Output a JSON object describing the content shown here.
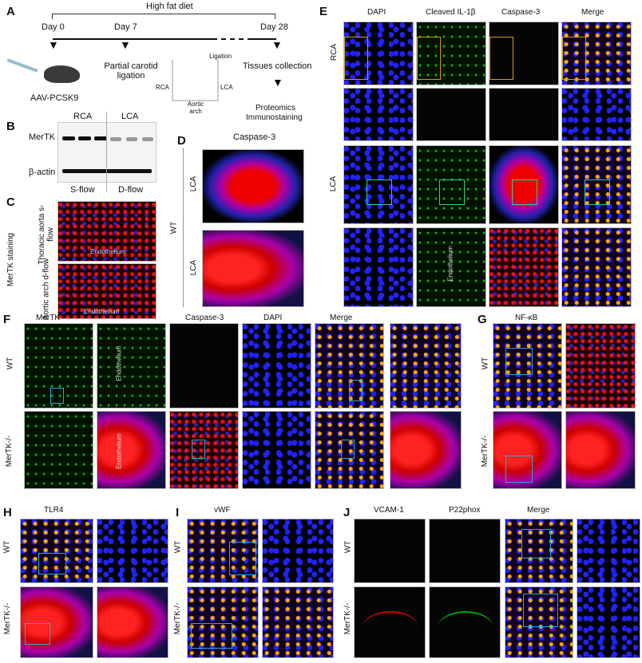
{
  "panels": {
    "A": "A",
    "B": "B",
    "C": "C",
    "D": "D",
    "E": "E",
    "F": "F",
    "G": "G",
    "H": "H",
    "I": "I",
    "J": "J"
  },
  "a": {
    "diet": "High fat diet",
    "day0": "Day 0",
    "day7": "Day 7",
    "day28": "Day 28",
    "aav": "AAV-PCSK9",
    "ligation_step": "Partial carotid ligation",
    "ligation": "Ligation",
    "rca": "RCA",
    "lca": "LCA",
    "arch": "Aortic arch",
    "collect": "Tissues collection",
    "analysis1": "Proteomics",
    "analysis2": "Immunostaining"
  },
  "b": {
    "rca": "RCA",
    "lca": "LCA",
    "mertk": "MerTK",
    "actin": "β-actin",
    "sflow": "S-flow",
    "dflow": "D-flow"
  },
  "c": {
    "staining": "MerTK staining",
    "row1": "Thoracic aorta s-flow",
    "row2": "Aortic arch d-flow",
    "endo": "Endothelium"
  },
  "d": {
    "title": "Caspase-3",
    "wt": "WT",
    "lca": "LCA"
  },
  "e": {
    "cols": [
      "DAPI",
      "Cleaved IL-1β",
      "Caspase-3",
      "Merge"
    ],
    "rca": "RCA",
    "lca": "LCA",
    "endo": "Endothelium"
  },
  "f": {
    "cols": [
      "MerTK",
      "Caspase-3",
      "DAPI",
      "Merge"
    ],
    "wt": "WT",
    "ko": "MerTK-/-",
    "endo": "Endothelium"
  },
  "g": {
    "title": "NF-κB",
    "wt": "WT",
    "ko": "MerTK-/-"
  },
  "h": {
    "title": "TLR4",
    "wt": "WT",
    "ko": "MerTK-/-"
  },
  "i": {
    "title": "vWF",
    "wt": "WT",
    "ko": "MerTK-/-"
  },
  "j": {
    "cols": [
      "VCAM-1",
      "P22phox",
      "Merge"
    ],
    "wt": "WT",
    "ko": "MerTK-/-"
  }
}
